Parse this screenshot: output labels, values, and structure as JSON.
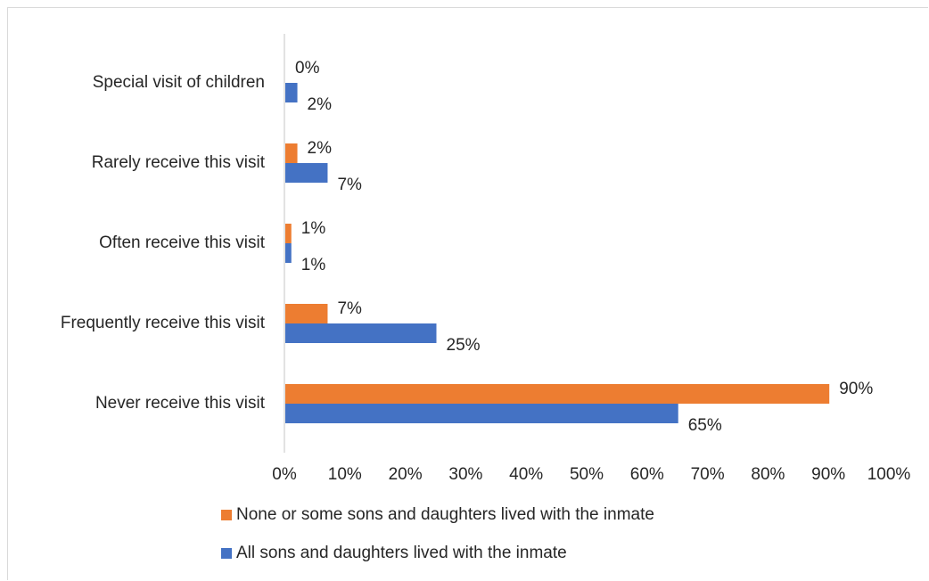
{
  "chart_data": {
    "type": "bar",
    "orientation": "horizontal",
    "title": "",
    "xlabel": "",
    "ylabel": "",
    "xlim": [
      0,
      100
    ],
    "x_ticks": [
      "0%",
      "10%",
      "20%",
      "30%",
      "40%",
      "50%",
      "60%",
      "70%",
      "80%",
      "90%",
      "100%"
    ],
    "grid": false,
    "legend_position": "bottom",
    "categories": [
      "Special visit of children",
      "Rarely receive this visit",
      "Often receive this visit",
      "Frequently receive this visit",
      "Never receive this visit"
    ],
    "series": [
      {
        "name": "None or some sons and daughters lived with the inmate",
        "color": "#ED7D31",
        "values": [
          0,
          2,
          1,
          7,
          90
        ],
        "labels": [
          "0%",
          "2%",
          "1%",
          "7%",
          "90%"
        ]
      },
      {
        "name": "All sons and daughters lived with the inmate",
        "color": "#4472C4",
        "values": [
          2,
          7,
          1,
          25,
          65
        ],
        "labels": [
          "2%",
          "7%",
          "1%",
          "25%",
          "65%"
        ]
      }
    ]
  }
}
